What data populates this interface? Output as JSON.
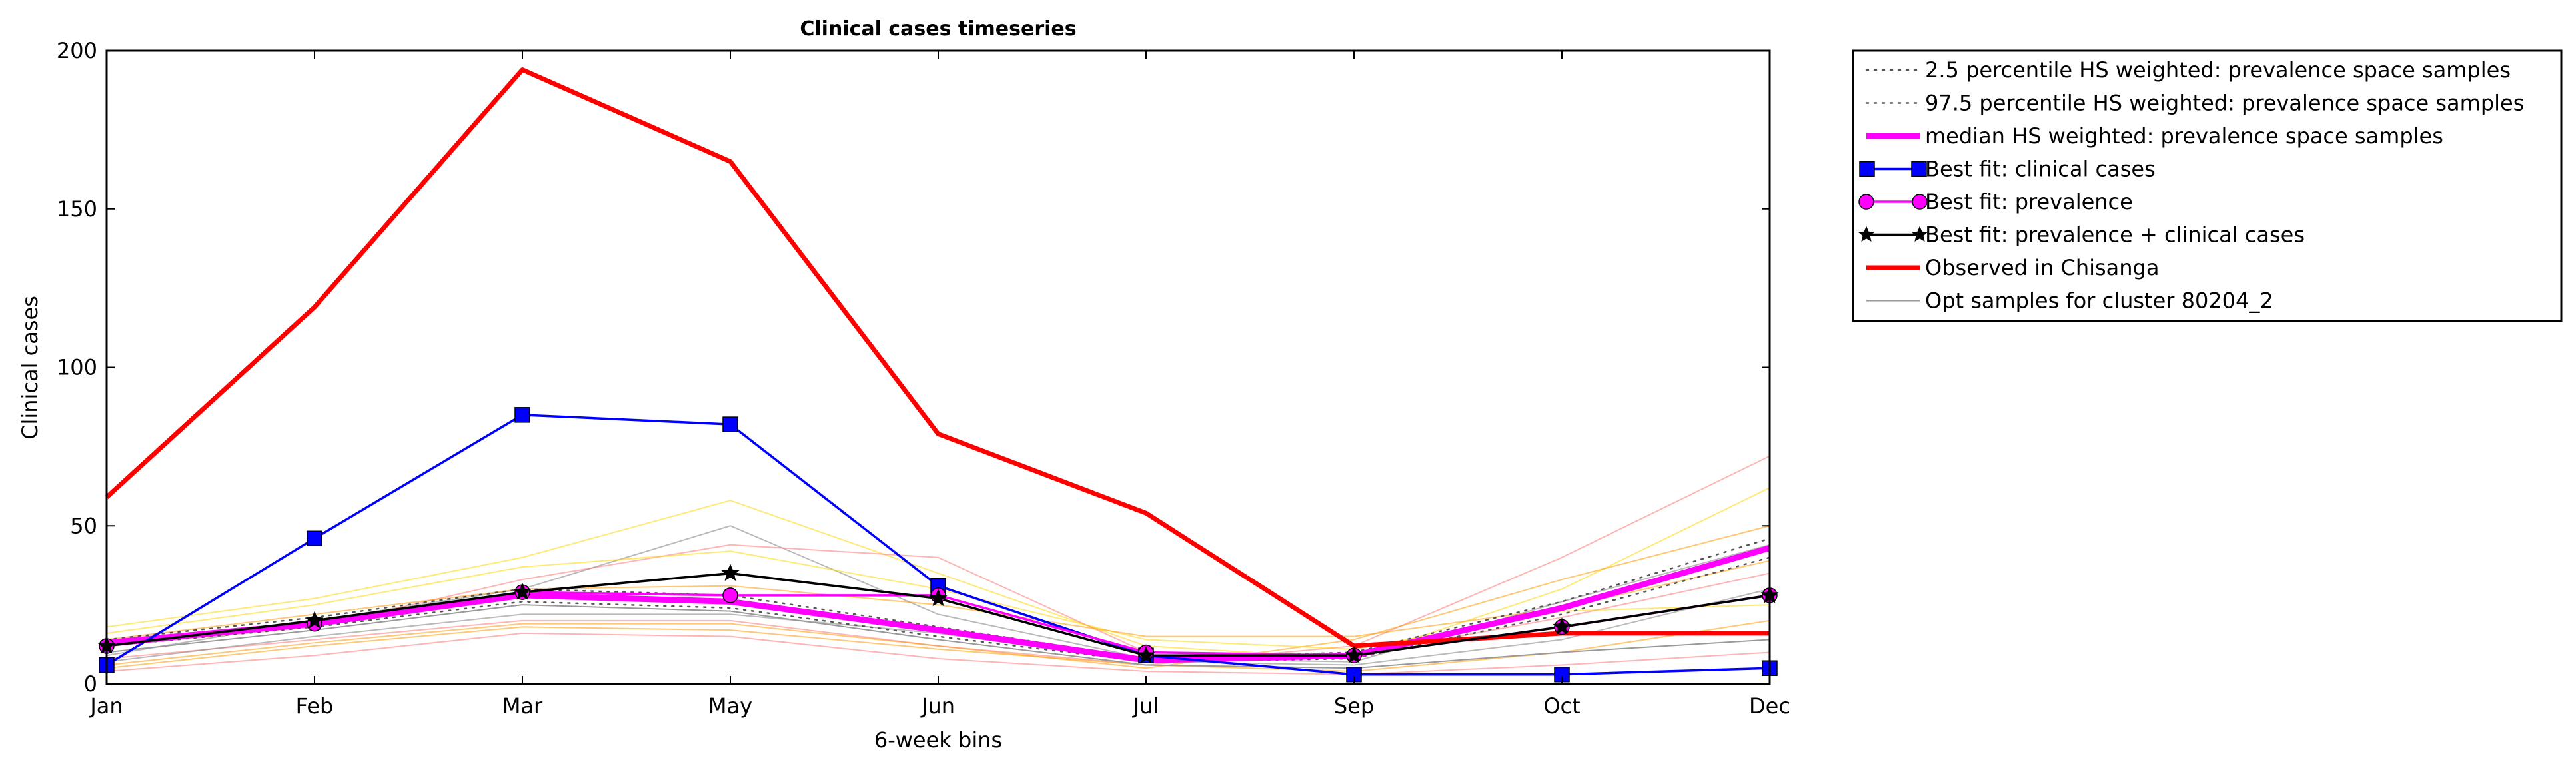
{
  "chart_data": {
    "type": "line",
    "title": "Clinical cases timeseries",
    "xlabel": "6-week bins",
    "ylabel": "Clinical cases",
    "categories": [
      "Jan",
      "Feb",
      "Mar",
      "May",
      "Jun",
      "Jul",
      "Sep",
      "Oct",
      "Dec"
    ],
    "ylim": [
      0,
      200
    ],
    "yticks": [
      0,
      50,
      100,
      150,
      200
    ],
    "grid": false,
    "legend_position": "outside-right-top",
    "series": [
      {
        "name": "2.5 percentile HS weighted: prevalence space samples",
        "color": "#555555",
        "style": "dotted",
        "values": [
          12,
          18,
          26,
          24,
          15,
          7,
          8,
          22,
          40
        ]
      },
      {
        "name": "97.5 percentile HS weighted: prevalence space samples",
        "color": "#555555",
        "style": "dotted",
        "values": [
          14,
          21,
          30,
          28,
          18,
          8,
          10,
          26,
          46
        ]
      },
      {
        "name": "median HS weighted: prevalence space samples",
        "color": "#ff00ff",
        "style": "thick",
        "values": [
          13,
          19,
          28,
          26,
          17,
          7.5,
          9,
          24,
          43
        ]
      },
      {
        "name": "Best fit: clinical cases",
        "color": "#0000ff",
        "marker": "square",
        "values": [
          6,
          46,
          85,
          82,
          31,
          9,
          3,
          3,
          5
        ]
      },
      {
        "name": "Best fit: prevalence",
        "color": "#ff00ff",
        "marker": "circle",
        "values": [
          12,
          19,
          29,
          28,
          28,
          10,
          9,
          18,
          28
        ]
      },
      {
        "name": "Best fit: prevalence + clinical cases",
        "color": "#000000",
        "marker": "star",
        "values": [
          12,
          20,
          29,
          35,
          27,
          9,
          9,
          18,
          28
        ]
      },
      {
        "name": "Observed in Chisanga",
        "color": "#ff0000",
        "style": "thick",
        "values": [
          59,
          119,
          194,
          165,
          79,
          54,
          12,
          16,
          16
        ]
      },
      {
        "name": "Opt samples for cluster 80204_2",
        "color": "#999999",
        "style": "thin",
        "values": [
          10,
          17,
          25,
          23,
          14,
          6,
          5,
          10,
          14
        ]
      }
    ],
    "background_samples": [
      {
        "color": "#ffd700",
        "values": [
          18,
          27,
          40,
          58,
          35,
          12,
          8,
          30,
          62
        ]
      },
      {
        "color": "#ff7777",
        "values": [
          4,
          9,
          16,
          15,
          8,
          4,
          3,
          6,
          10
        ]
      },
      {
        "color": "#ff7777",
        "values": [
          8,
          14,
          20,
          20,
          12,
          6,
          12,
          40,
          72
        ]
      },
      {
        "color": "#ff9900",
        "values": [
          6,
          13,
          19,
          19,
          12,
          5,
          14,
          33,
          50
        ]
      },
      {
        "color": "#808080",
        "values": [
          9,
          20,
          30,
          50,
          22,
          8,
          7,
          26,
          44
        ]
      },
      {
        "color": "#ff7777",
        "values": [
          12,
          18,
          33,
          44,
          40,
          10,
          9,
          21,
          35
        ]
      },
      {
        "color": "#ff9900",
        "values": [
          5,
          12,
          18,
          17,
          11,
          6,
          4,
          10,
          20
        ]
      },
      {
        "color": "#ffd700",
        "values": [
          16,
          25,
          37,
          42,
          30,
          14,
          11,
          23,
          25
        ]
      },
      {
        "color": "#ff9900",
        "values": [
          14,
          22,
          30,
          31,
          25,
          15,
          15,
          24,
          39
        ]
      },
      {
        "color": "#808080",
        "values": [
          7,
          15,
          22,
          22,
          16,
          7,
          6,
          14,
          30
        ]
      }
    ]
  }
}
